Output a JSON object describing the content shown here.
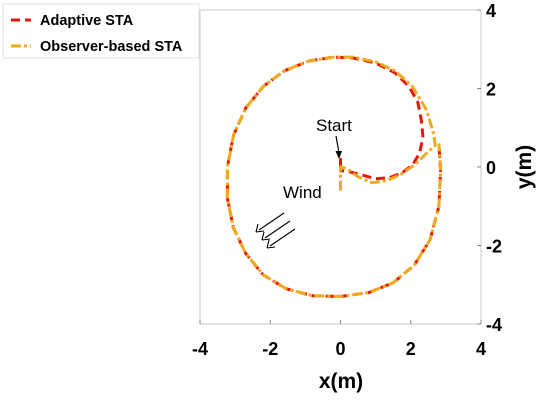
{
  "chart_data": {
    "type": "line",
    "title": "",
    "xlabel": "x(m)",
    "ylabel": "y(m)",
    "xlim": [
      -4,
      4
    ],
    "ylim": [
      -4,
      4
    ],
    "xticks": [
      "-4",
      "-2",
      "0",
      "2",
      "4"
    ],
    "yticks": [
      "-4",
      "-2",
      "0",
      "2",
      "4"
    ],
    "grid": false,
    "y_axis_side": "right",
    "legend_position": "top-left",
    "annotations": {
      "start": "Start",
      "wind": "Wind"
    },
    "series": [
      {
        "name": "Adaptive STA",
        "color": "#e8140c",
        "dash": "dashed",
        "points": [
          [
            0,
            0.0
          ],
          [
            0,
            0.2
          ],
          [
            0,
            -0.1
          ],
          [
            0.15,
            -0.1
          ],
          [
            0.6,
            -0.2
          ],
          [
            1.0,
            -0.3
          ],
          [
            1.4,
            -0.27
          ],
          [
            1.75,
            -0.15
          ],
          [
            2.05,
            0.05
          ],
          [
            2.25,
            0.35
          ],
          [
            2.35,
            0.75
          ],
          [
            2.3,
            1.2
          ],
          [
            2.2,
            1.65
          ],
          [
            1.95,
            2.05
          ],
          [
            1.55,
            2.4
          ],
          [
            1.0,
            2.65
          ],
          [
            0.35,
            2.78
          ],
          [
            -0.2,
            2.8
          ],
          [
            -0.9,
            2.7
          ],
          [
            -1.6,
            2.45
          ],
          [
            -2.2,
            2.05
          ],
          [
            -2.7,
            1.5
          ],
          [
            -3.05,
            0.8
          ],
          [
            -3.22,
            0.0
          ],
          [
            -3.22,
            -0.8
          ],
          [
            -3.05,
            -1.55
          ],
          [
            -2.7,
            -2.2
          ],
          [
            -2.2,
            -2.75
          ],
          [
            -1.55,
            -3.1
          ],
          [
            -0.8,
            -3.28
          ],
          [
            0.0,
            -3.3
          ],
          [
            0.8,
            -3.2
          ],
          [
            1.5,
            -2.95
          ],
          [
            2.1,
            -2.5
          ],
          [
            2.55,
            -1.85
          ],
          [
            2.8,
            -1.0
          ],
          [
            2.85,
            -0.1
          ],
          [
            2.8,
            0.6
          ]
        ]
      },
      {
        "name": "Observer-based STA",
        "color": "#f0aa1e",
        "dash": "dashdot",
        "points": [
          [
            0,
            -0.6
          ],
          [
            0,
            0.0
          ],
          [
            0.2,
            -0.05
          ],
          [
            0.5,
            -0.25
          ],
          [
            0.9,
            -0.4
          ],
          [
            1.3,
            -0.35
          ],
          [
            1.7,
            -0.2
          ],
          [
            2.1,
            0.05
          ],
          [
            2.45,
            0.35
          ],
          [
            2.7,
            0.55
          ],
          [
            2.65,
            0.85
          ],
          [
            2.45,
            1.45
          ],
          [
            2.05,
            2.05
          ],
          [
            1.55,
            2.45
          ],
          [
            1.0,
            2.68
          ],
          [
            0.35,
            2.8
          ],
          [
            -0.2,
            2.8
          ],
          [
            -0.9,
            2.7
          ],
          [
            -1.6,
            2.45
          ],
          [
            -2.2,
            2.05
          ],
          [
            -2.7,
            1.5
          ],
          [
            -3.05,
            0.8
          ],
          [
            -3.22,
            0.0
          ],
          [
            -3.22,
            -0.8
          ],
          [
            -3.05,
            -1.55
          ],
          [
            -2.7,
            -2.2
          ],
          [
            -2.2,
            -2.75
          ],
          [
            -1.55,
            -3.1
          ],
          [
            -0.8,
            -3.28
          ],
          [
            0.0,
            -3.3
          ],
          [
            0.8,
            -3.2
          ],
          [
            1.5,
            -2.95
          ],
          [
            2.1,
            -2.5
          ],
          [
            2.55,
            -1.85
          ],
          [
            2.8,
            -1.0
          ],
          [
            2.85,
            -0.1
          ],
          [
            2.8,
            0.6
          ]
        ]
      }
    ]
  }
}
